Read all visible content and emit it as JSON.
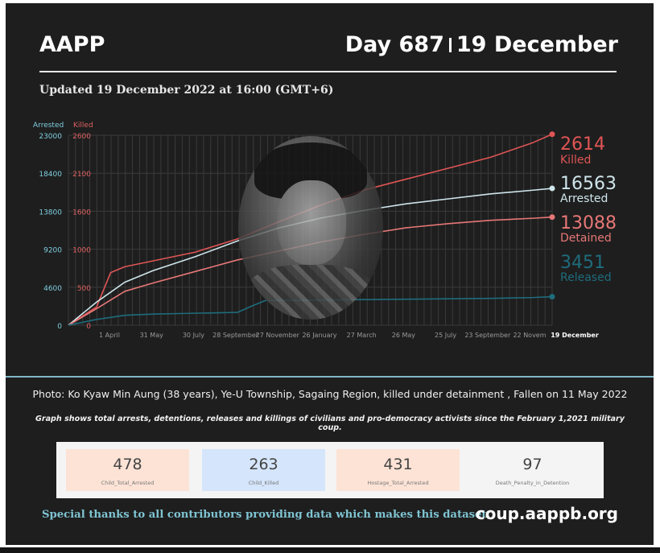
{
  "header": {
    "brand": "AAPP",
    "day": "Day 687",
    "date": "19 December",
    "updated": "Updated 19 December 2022 at 16:00 (GMT+6)"
  },
  "chart_data": {
    "type": "line",
    "y_left": {
      "label": "Arrested",
      "ticks": [
        0,
        4600,
        9200,
        13800,
        18400,
        23000
      ],
      "color": "#7ecfe0"
    },
    "y_right": {
      "label": "Killed",
      "ticks": [
        0,
        500,
        1000,
        1600,
        2100,
        2600
      ],
      "color": "#e06060"
    },
    "x_tick_labels": [
      "1 April",
      "31 May",
      "30 July",
      "28 September",
      "27 November",
      "26 January",
      "27 March",
      "26 May",
      "25 July",
      "23 September",
      "22 Novem",
      "19 December"
    ],
    "x_range": [
      0,
      687
    ],
    "series": [
      {
        "name": "Killed",
        "axis": "right",
        "color": "#e05555",
        "end_label": "2614",
        "x": [
          0,
          40,
          60,
          80,
          120,
          180,
          240,
          300,
          360,
          420,
          480,
          540,
          600,
          660,
          687
        ],
        "y": [
          0,
          250,
          720,
          800,
          880,
          1000,
          1180,
          1420,
          1650,
          1850,
          2000,
          2150,
          2300,
          2500,
          2614
        ]
      },
      {
        "name": "Arrested",
        "axis": "left",
        "color": "#cfe6ec",
        "end_label": "16563",
        "x": [
          0,
          40,
          80,
          120,
          180,
          240,
          300,
          360,
          420,
          480,
          540,
          600,
          660,
          687
        ],
        "y": [
          0,
          2800,
          5200,
          6600,
          8300,
          10200,
          11800,
          13000,
          13900,
          14700,
          15300,
          15900,
          16350,
          16563
        ]
      },
      {
        "name": "Detained",
        "axis": "left",
        "color": "#e77777",
        "end_label": "13088",
        "x": [
          0,
          40,
          80,
          120,
          180,
          240,
          300,
          360,
          420,
          480,
          540,
          600,
          660,
          687
        ],
        "y": [
          0,
          2000,
          4100,
          5100,
          6500,
          7900,
          9000,
          10100,
          11000,
          11800,
          12300,
          12700,
          12950,
          13088
        ]
      },
      {
        "name": "Released",
        "axis": "left",
        "color": "#1e6c7c",
        "end_label": "3451",
        "x": [
          0,
          40,
          80,
          120,
          180,
          240,
          260,
          280,
          300,
          360,
          420,
          480,
          540,
          600,
          660,
          687
        ],
        "y": [
          0,
          700,
          1200,
          1350,
          1450,
          1550,
          2300,
          3000,
          3000,
          3050,
          3100,
          3150,
          3200,
          3250,
          3350,
          3451
        ]
      }
    ]
  },
  "photo": {
    "alt": "portrait"
  },
  "caption": {
    "photo_text": "Photo: Ko Kyaw Min Aung (38 years), Ye-U Township, Sagaing Region, killed under detainment , Fallen on 11 May 2022",
    "graph_note": "Graph shows total arrests, detentions, releases and killings of civilians and pro-democracy activists since the February 1,2021 military coup."
  },
  "stats": [
    {
      "value": "478",
      "label": "Child_Total_Arrested",
      "bg": "#fde3d6"
    },
    {
      "value": "263",
      "label": "Child_Killed",
      "bg": "#d5e5fb"
    },
    {
      "value": "431",
      "label": "Hostage_Total_Arrested",
      "bg": "#fde3d6"
    },
    {
      "value": "97",
      "label": "Death_Penalty_in_Detention",
      "bg": "#f4f4f4"
    }
  ],
  "footer": {
    "thanks": "Special thanks to all contributors providing data which makes this dataset.",
    "site": "coup.aappb.org"
  }
}
